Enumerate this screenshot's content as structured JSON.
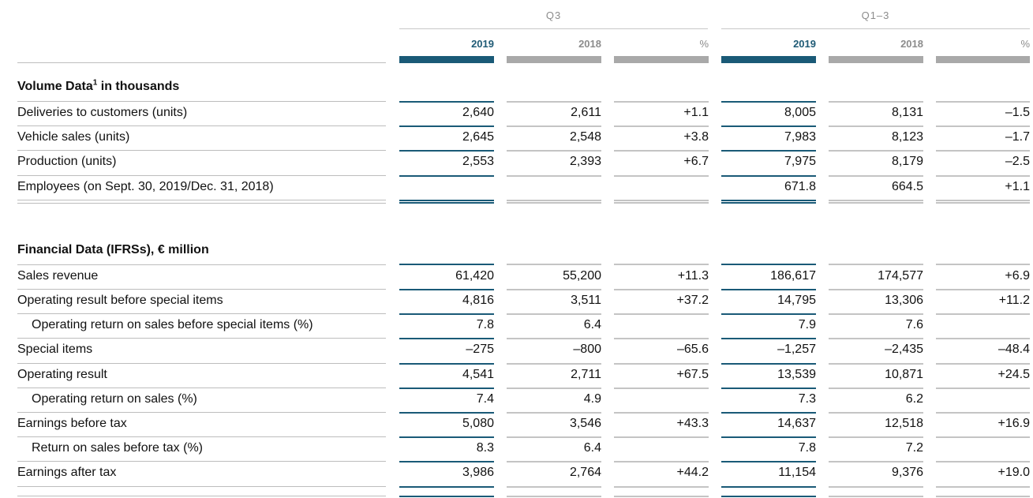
{
  "header": {
    "group_q3": "Q3",
    "group_q13": "Q1–3",
    "columns": [
      "2019",
      "2018",
      "%",
      "2019",
      "2018",
      "%"
    ]
  },
  "sections": [
    {
      "title": "Volume Data",
      "title_sup": "1",
      "title_suffix": " in thousands",
      "rows": [
        {
          "label": "Deliveries to customers (units)",
          "indent": false,
          "values": [
            "2,640",
            "2,611",
            "+1.1",
            "8,005",
            "8,131",
            "–1.5"
          ]
        },
        {
          "label": "Vehicle sales (units)",
          "indent": false,
          "values": [
            "2,645",
            "2,548",
            "+3.8",
            "7,983",
            "8,123",
            "–1.7"
          ]
        },
        {
          "label": "Production (units)",
          "indent": false,
          "values": [
            "2,553",
            "2,393",
            "+6.7",
            "7,975",
            "8,179",
            "–2.5"
          ]
        },
        {
          "label": "Employees (on Sept. 30, 2019/Dec. 31, 2018)",
          "indent": false,
          "values": [
            "",
            "",
            "",
            "671.8",
            "664.5",
            "+1.1"
          ]
        }
      ]
    },
    {
      "title": "Financial Data (IFRSs), € million",
      "title_sup": "",
      "title_suffix": "",
      "rows": [
        {
          "label": "Sales revenue",
          "indent": false,
          "values": [
            "61,420",
            "55,200",
            "+11.3",
            "186,617",
            "174,577",
            "+6.9"
          ]
        },
        {
          "label": "Operating result before special items",
          "indent": false,
          "values": [
            "4,816",
            "3,511",
            "+37.2",
            "14,795",
            "13,306",
            "+11.2"
          ]
        },
        {
          "label": "Operating return on sales before special items (%)",
          "indent": true,
          "values": [
            "7.8",
            "6.4",
            "",
            "7.9",
            "7.6",
            ""
          ]
        },
        {
          "label": "Special items",
          "indent": false,
          "values": [
            "–275",
            "–800",
            "–65.6",
            "–1,257",
            "–2,435",
            "–48.4"
          ]
        },
        {
          "label": "Operating result",
          "indent": false,
          "values": [
            "4,541",
            "2,711",
            "+67.5",
            "13,539",
            "10,871",
            "+24.5"
          ]
        },
        {
          "label": "Operating return on sales (%)",
          "indent": true,
          "values": [
            "7.4",
            "4.9",
            "",
            "7.3",
            "6.2",
            ""
          ]
        },
        {
          "label": "Earnings before tax",
          "indent": false,
          "values": [
            "5,080",
            "3,546",
            "+43.3",
            "14,637",
            "12,518",
            "+16.9"
          ]
        },
        {
          "label": "Return on sales before tax (%)",
          "indent": true,
          "values": [
            "8.3",
            "6.4",
            "",
            "7.8",
            "7.2",
            ""
          ]
        },
        {
          "label": "Earnings after tax",
          "indent": false,
          "values": [
            "3,986",
            "2,764",
            "+44.2",
            "11,154",
            "9,376",
            "+19.0"
          ]
        }
      ]
    }
  ],
  "colors": {
    "accent": "#1a5a77",
    "accent_text": "#1e5a75",
    "gray_bar": "#a9a9a9",
    "gray_line": "#c4c4c4"
  }
}
